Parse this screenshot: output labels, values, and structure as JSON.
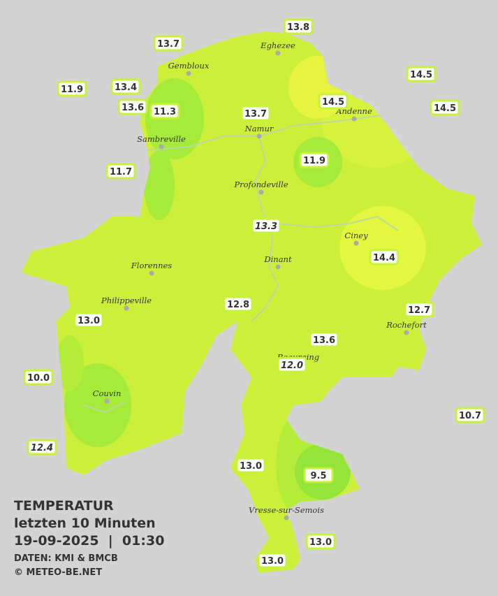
{
  "title": {
    "heading": "TEMPERATUR",
    "subtitle": "letzten 10 Minuten",
    "datetime": "19-09-2025  |  01:30",
    "source": "DATEN: KMI & BMCB",
    "copyright": "© METEO-BE.NET"
  },
  "cities": [
    {
      "name": "Eghezee"
    },
    {
      "name": "Gembloux"
    },
    {
      "name": "Andenne"
    },
    {
      "name": "Namur"
    },
    {
      "name": "Sambreville"
    },
    {
      "name": "Profondeville"
    },
    {
      "name": "Ciney"
    },
    {
      "name": "Dinant"
    },
    {
      "name": "Florennes"
    },
    {
      "name": "Philippeville"
    },
    {
      "name": "Rochefort"
    },
    {
      "name": "Beauraing"
    },
    {
      "name": "Couvin"
    },
    {
      "name": "Vresse-sur-Semois"
    }
  ],
  "stations": [
    {
      "label": "13.8"
    },
    {
      "label": "13.7"
    },
    {
      "label": "11.9"
    },
    {
      "label": "13.4"
    },
    {
      "label": "13.6"
    },
    {
      "label": "11.3"
    },
    {
      "label": "13.7"
    },
    {
      "label": "14.5"
    },
    {
      "label": "14.5"
    },
    {
      "label": "14.5"
    },
    {
      "label": "11.9"
    },
    {
      "label": "11.7"
    },
    {
      "label": "13.3"
    },
    {
      "label": "14.4"
    },
    {
      "label": "12.8"
    },
    {
      "label": "12.7"
    },
    {
      "label": "13.0"
    },
    {
      "label": "13.6"
    },
    {
      "label": "12.0"
    },
    {
      "label": "10.0"
    },
    {
      "label": "10.7"
    },
    {
      "label": "12.4"
    },
    {
      "label": "13.0"
    },
    {
      "label": "9.5"
    },
    {
      "label": "13.0"
    },
    {
      "label": "13.0"
    }
  ]
}
